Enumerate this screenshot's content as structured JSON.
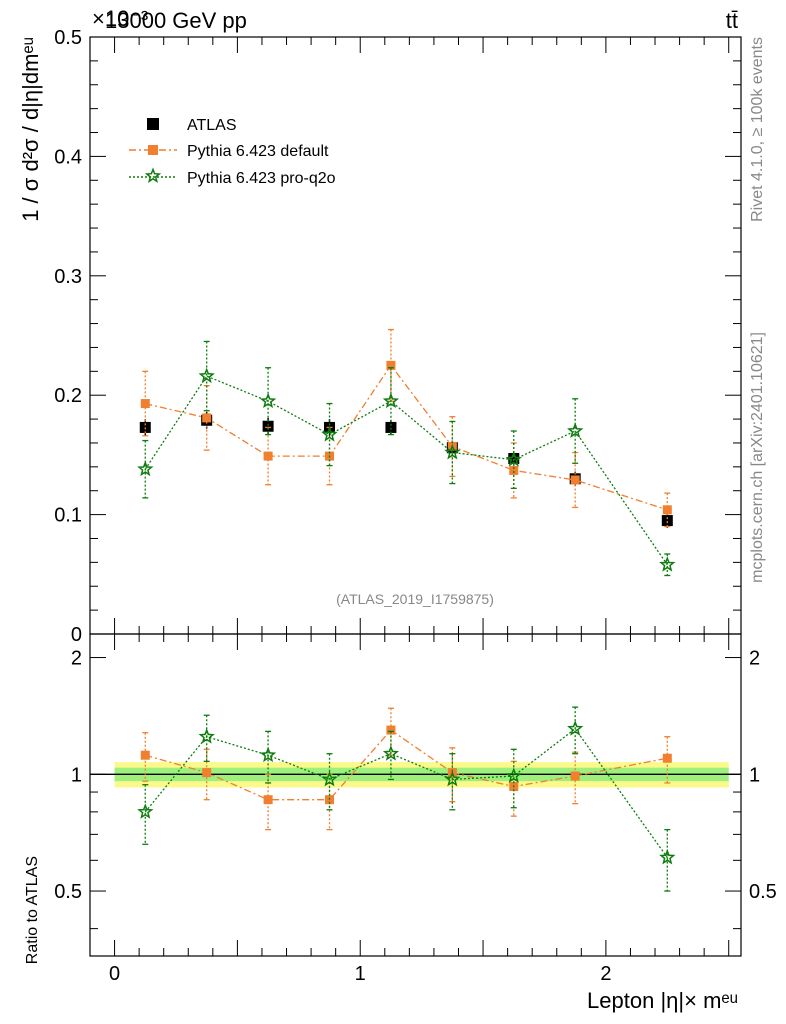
{
  "header": {
    "left_title": "13000 GeV pp",
    "right_title": "tt̄",
    "exponent_label": "×10⁻³"
  },
  "side_text": {
    "rivet": "Rivet 4.1.0, ≥ 100k events",
    "mcplots": "mcplots.cern.ch [arXiv:2401.10621]"
  },
  "analysis_id": "(ATLAS_2019_I1759875)",
  "legend": {
    "data": "ATLAS",
    "mc1": "Pythia 6.423 default",
    "mc2": "Pythia 6.423 pro-q2o"
  },
  "colors": {
    "data": "#000000",
    "mc1": "#f07f2f",
    "mc2": "#0d7d0d",
    "band_outer": "#fcf98b",
    "band_inner": "#9ef07e"
  },
  "chart_data": [
    {
      "type": "scatter",
      "panel": "main",
      "ylabel": "1 / σ  d²σ / d|η|dmᵉᵘ",
      "xlim": [
        -0.1,
        2.55
      ],
      "ylim": [
        0,
        0.5
      ],
      "yticks": [
        0.1,
        0.2,
        0.3,
        0.4,
        0.5
      ],
      "ytick_labels": [
        "0.1",
        "0.2",
        "0.3",
        "0.4",
        "0.5"
      ],
      "y_zero_label": "0",
      "x": [
        0.125,
        0.375,
        0.625,
        0.875,
        1.125,
        1.375,
        1.625,
        1.875,
        2.25
      ],
      "x_err": [
        0.125,
        0.125,
        0.125,
        0.125,
        0.125,
        0.125,
        0.125,
        0.125,
        0.25
      ],
      "series": [
        {
          "name": "ATLAS",
          "values": [
            0.173,
            0.179,
            0.174,
            0.173,
            0.173,
            0.156,
            0.147,
            0.13,
            0.095
          ],
          "errors": [
            0.007,
            0.007,
            0.007,
            0.007,
            0.006,
            0.006,
            0.006,
            0.006,
            0.006
          ]
        },
        {
          "name": "Pythia 6.423 default",
          "values": [
            0.193,
            0.181,
            0.149,
            0.149,
            0.225,
            0.157,
            0.137,
            0.129,
            0.104
          ],
          "errors": [
            0.027,
            0.027,
            0.024,
            0.024,
            0.03,
            0.025,
            0.023,
            0.023,
            0.014
          ]
        },
        {
          "name": "Pythia 6.423 pro-q2o",
          "values": [
            0.138,
            0.216,
            0.195,
            0.167,
            0.195,
            0.152,
            0.146,
            0.17,
            0.058
          ],
          "errors": [
            0.024,
            0.029,
            0.028,
            0.026,
            0.028,
            0.026,
            0.024,
            0.027,
            0.009
          ]
        }
      ]
    },
    {
      "type": "scatter",
      "panel": "ratio",
      "ylabel": "Ratio to ATLAS",
      "xlabel": "Lepton |η|× mᵉᵘ",
      "xlim": [
        -0.1,
        2.55
      ],
      "ylim": [
        0.34,
        2.3
      ],
      "yticks": [
        0.5,
        1,
        2
      ],
      "ytick_labels": [
        "0.5",
        "1",
        "2"
      ],
      "xticks": [
        0,
        1,
        2
      ],
      "xtick_labels": [
        "0",
        "1",
        "2"
      ],
      "x": [
        0.125,
        0.375,
        0.625,
        0.875,
        1.125,
        1.375,
        1.625,
        1.875,
        2.25
      ],
      "band_inner": 0.04,
      "band_outer": 0.075,
      "series": [
        {
          "name": "Pythia 6.423 default",
          "values": [
            1.12,
            1.01,
            0.86,
            0.86,
            1.3,
            1.01,
            0.93,
            0.99,
            1.1
          ],
          "errors": [
            0.16,
            0.15,
            0.14,
            0.14,
            0.18,
            0.16,
            0.15,
            0.15,
            0.15
          ]
        },
        {
          "name": "Pythia 6.423 pro-q2o",
          "values": [
            0.8,
            1.25,
            1.12,
            0.97,
            1.13,
            0.97,
            0.99,
            1.31,
            0.61
          ],
          "errors": [
            0.14,
            0.17,
            0.17,
            0.16,
            0.16,
            0.16,
            0.17,
            0.18,
            0.11
          ]
        }
      ]
    }
  ]
}
